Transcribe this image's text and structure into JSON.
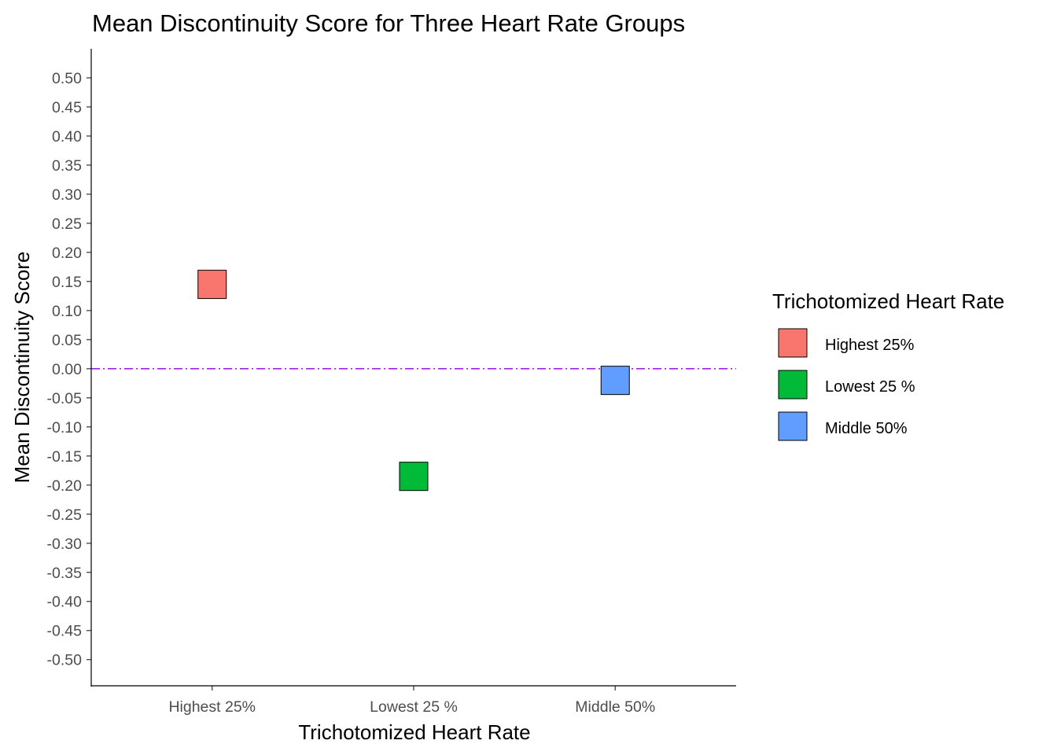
{
  "chart_data": {
    "type": "scatter",
    "title": "Mean Discontinuity Score for Three Heart Rate Groups",
    "xlabel": "Trichotomized Heart Rate",
    "ylabel": "Mean Discontinuity Score",
    "categories": [
      "Highest 25%",
      "Lowest 25 %",
      "Middle 50%"
    ],
    "values": [
      0.145,
      -0.185,
      -0.02
    ],
    "y_ticks": [
      "0.50",
      "0.45",
      "0.40",
      "0.35",
      "0.30",
      "0.25",
      "0.20",
      "0.15",
      "0.10",
      "0.05",
      "0.00",
      "-0.05",
      "-0.10",
      "-0.15",
      "-0.20",
      "-0.25",
      "-0.30",
      "-0.35",
      "-0.40",
      "-0.45",
      "-0.50"
    ],
    "ylim": [
      -0.545,
      0.55
    ],
    "reference_line": {
      "y": 0,
      "color": "#a020f0",
      "style": "dashdot"
    },
    "grid": false,
    "legend": {
      "title": "Trichotomized Heart Rate",
      "placement": "right",
      "entries": [
        {
          "label": "Highest 25%",
          "color": "#f8766d"
        },
        {
          "label": "Lowest 25 %",
          "color": "#00ba38"
        },
        {
          "label": "Middle 50%",
          "color": "#619cff"
        }
      ]
    },
    "colors": [
      "#f8766d",
      "#00ba38",
      "#619cff"
    ]
  }
}
